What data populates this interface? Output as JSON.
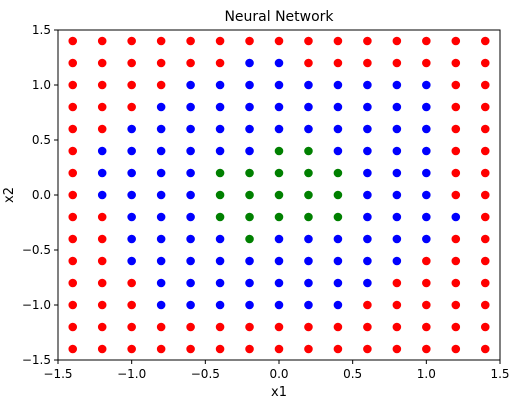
{
  "chart_data": {
    "type": "scatter",
    "title": "Neural Network",
    "xlabel": "x1",
    "ylabel": "x2",
    "xlim": [
      -1.5,
      1.5
    ],
    "ylim": [
      -1.5,
      1.5
    ],
    "grid": false,
    "x_ticks": [
      -1.5,
      -1.0,
      -0.5,
      0.0,
      0.5,
      1.0,
      1.5
    ],
    "x_tick_labels": [
      "−1.5",
      "−1.0",
      "−0.5",
      "0.0",
      "0.5",
      "1.0",
      "1.5"
    ],
    "y_ticks": [
      -1.5,
      -1.0,
      -0.5,
      0.0,
      0.5,
      1.0,
      1.5
    ],
    "y_tick_labels": [
      "−1.5",
      "−1.0",
      "−0.5",
      "0.0",
      "0.5",
      "1.0",
      "1.5"
    ],
    "x": [
      -1.4,
      -1.2,
      -1.0,
      -0.8,
      -0.6,
      -0.4,
      -0.2,
      0.0,
      0.2,
      0.4,
      0.6,
      0.8,
      1.0,
      1.2,
      1.4
    ],
    "y": [
      1.4,
      1.2,
      1.0,
      0.8,
      0.6,
      0.4,
      0.2,
      0.0,
      -0.2,
      -0.4,
      -0.6,
      -0.8,
      -1.0,
      -1.2,
      -1.4
    ],
    "class_colors": {
      "R": "#ff0000",
      "B": "#0000ff",
      "G": "#008000"
    },
    "grid_classes": [
      "RRRRRRRRRRRRRRR",
      "RRRRRRBBRRRRRRR",
      "RRRRBBBBBBBBBRR",
      "RRRBBBBBBBBBBRR",
      "RRBBBBBBBBBBBRR",
      "RBBBBBBGGBBBBRR",
      "RBBBBGGGGGBBBRR",
      "RBBBBGGGGGBBBRR",
      "RRBBBGGGGGBBBBR",
      "RRBBBBGBBBBBBRR",
      "RRBBBBBBBBBBRRR",
      "RRRBBBBBBBBRRRR",
      "RRRBBBBBBBRRRRR",
      "RRRRRRRRRRRRRRR",
      "RRRRRRRRRRRRRRR"
    ]
  }
}
